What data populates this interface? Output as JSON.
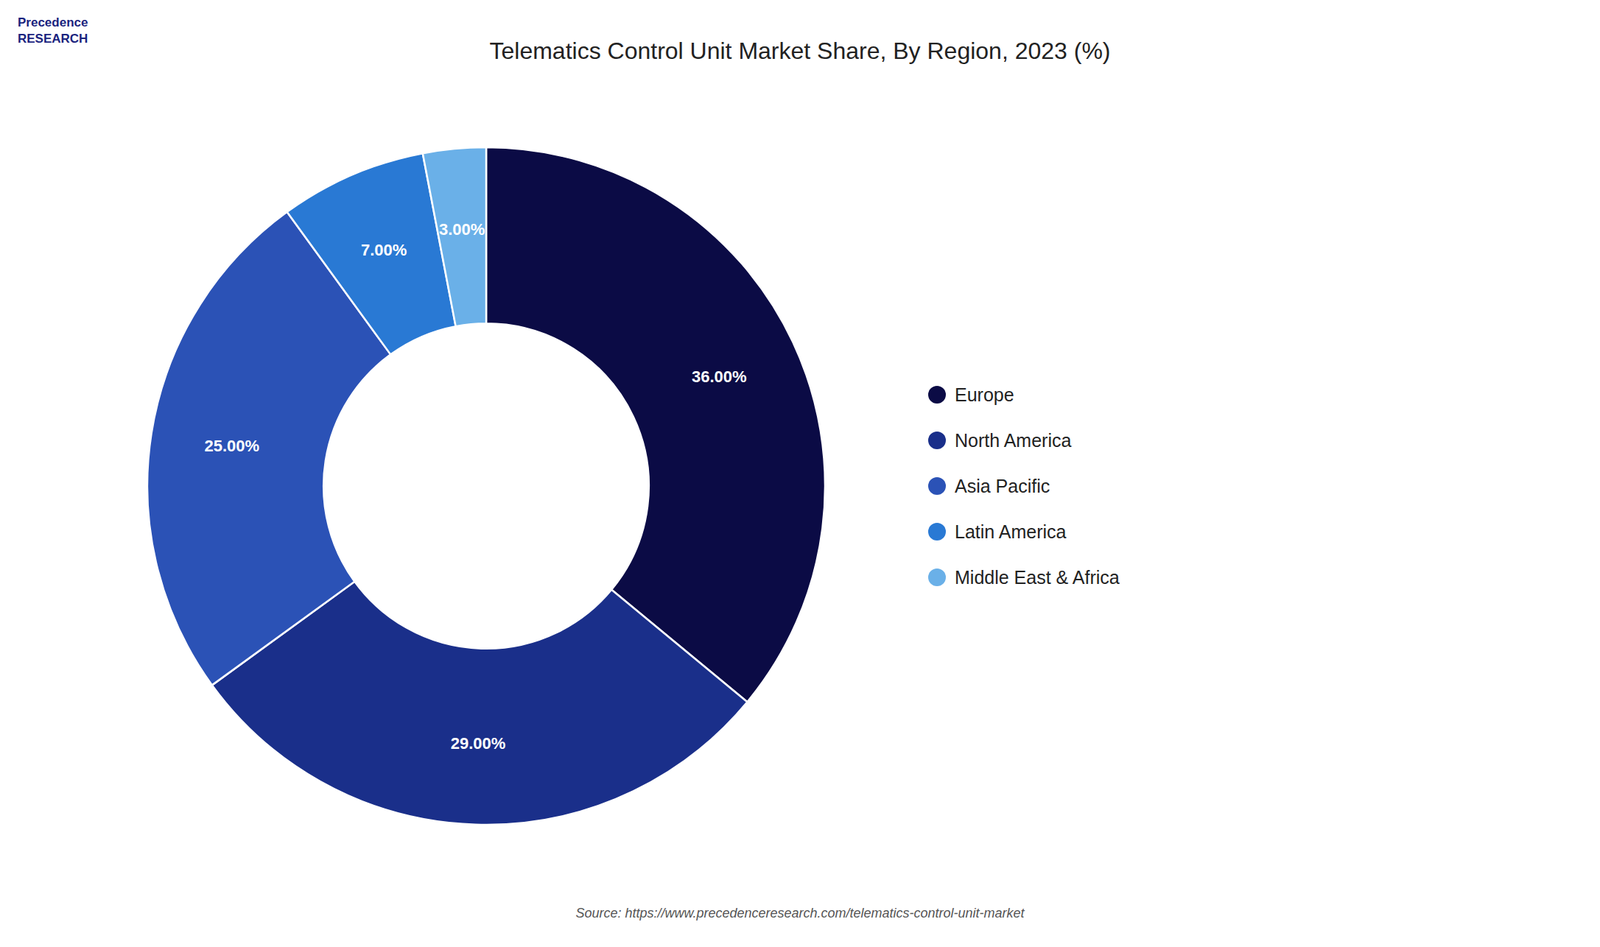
{
  "chart_data": {
    "type": "pie",
    "title": "Telematics Control Unit Market Share, By Region, 2023 (%)",
    "categories": [
      "Europe",
      "North America",
      "Asia Pacific",
      "Latin America",
      "Middle East & Africa"
    ],
    "values": [
      36.0,
      29.0,
      25.0,
      7.0,
      3.0
    ],
    "value_labels": [
      "36.00%",
      "29.00%",
      "25.00%",
      "7.00%",
      "3.00%"
    ],
    "colors": [
      "#0b0b45",
      "#1a2f8a",
      "#2b52b6",
      "#2979d4",
      "#6ab0e8"
    ],
    "data_labels": true,
    "legend": "right",
    "annotations": [
      "Precedence",
      "RESEARCH",
      "Source: https://www.precedenceresearch.com/telematics-control-unit-market"
    ]
  }
}
